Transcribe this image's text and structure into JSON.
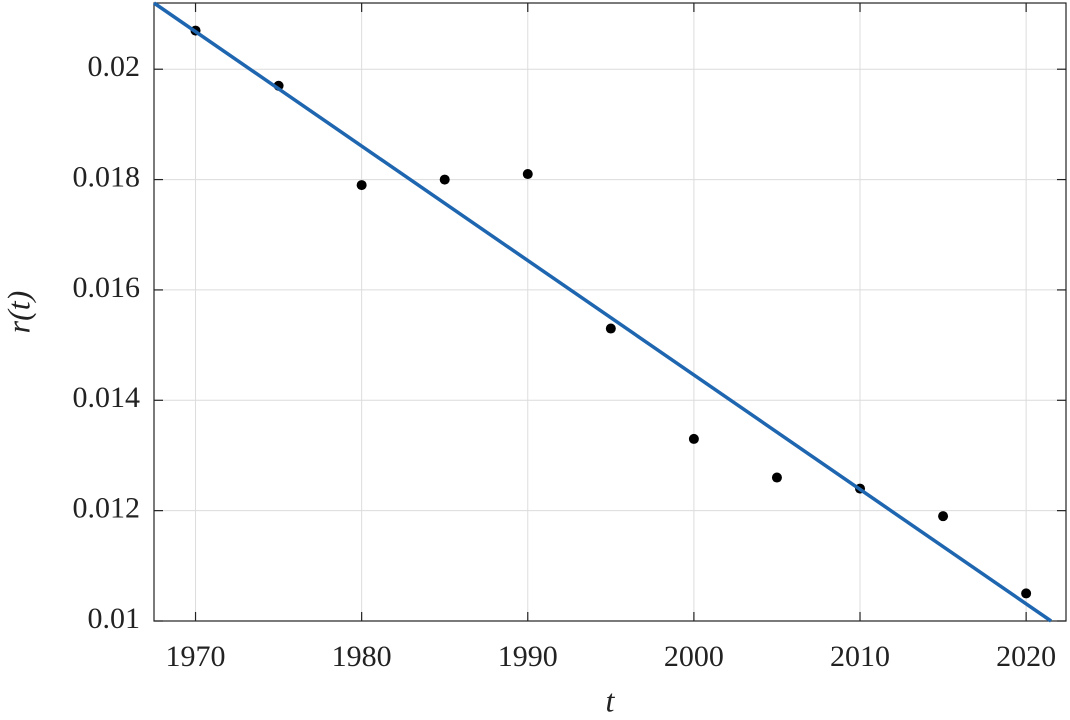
{
  "chart_data": {
    "type": "scatter",
    "x_label": "t",
    "y_label": "r(t)",
    "xlim": [
      1967.5,
      2022.4
    ],
    "ylim": [
      0.01,
      0.0212
    ],
    "xticks": [
      1970,
      1980,
      1990,
      2000,
      2010,
      2020
    ],
    "yticks": [
      0.01,
      0.012,
      0.014,
      0.016,
      0.018,
      0.02
    ],
    "grid": true,
    "series": [
      {
        "mode": "markers",
        "color": "#000000",
        "x": [
          1970,
          1975,
          1980,
          1985,
          1990,
          1995,
          2000,
          2005,
          2010,
          2015,
          2020
        ],
        "values": [
          0.0207,
          0.0197,
          0.0179,
          0.018,
          0.0181,
          0.0153,
          0.0133,
          0.0126,
          0.0124,
          0.0119,
          0.0105
        ]
      },
      {
        "mode": "line",
        "color": "#1f66b0",
        "x": [
          1967.5,
          2021.5
        ],
        "values": [
          0.0212,
          0.01
        ]
      }
    ]
  }
}
